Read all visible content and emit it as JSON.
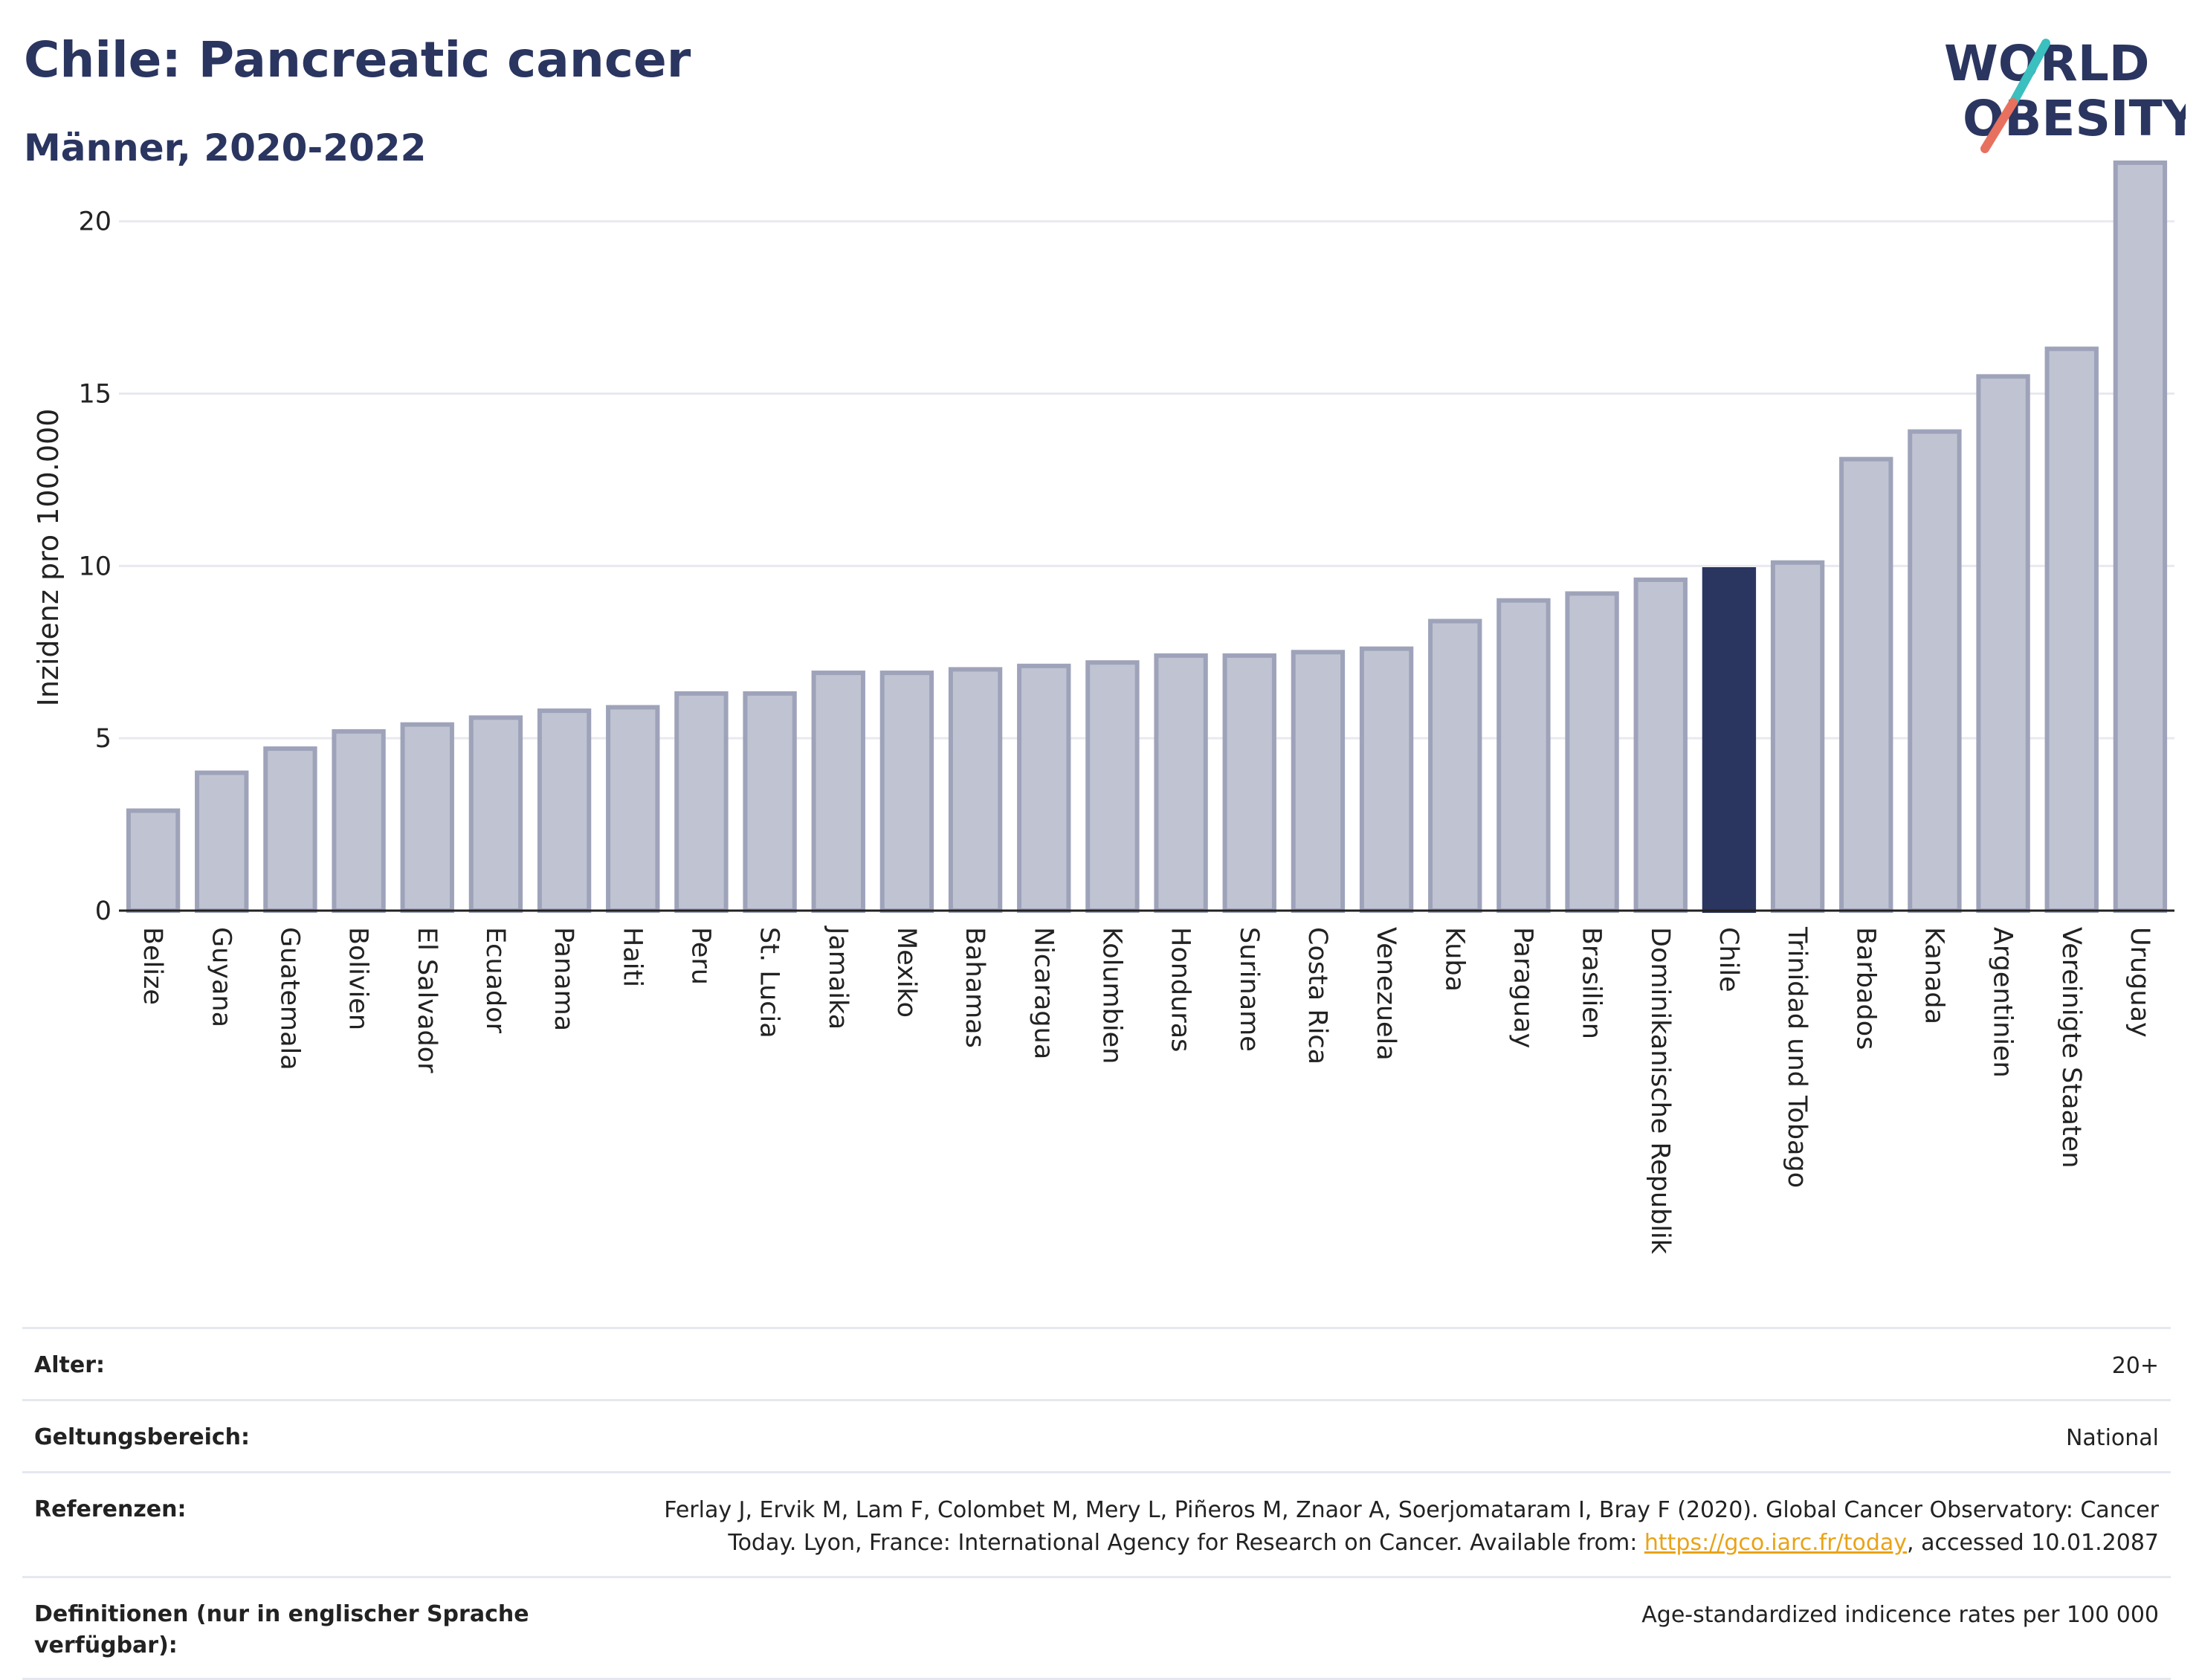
{
  "header": {
    "title": "Chile: Pancreatic cancer",
    "subtitle": "Männer, 2020-2022"
  },
  "logo": {
    "line1": "WORLD",
    "line2": "OBESITY"
  },
  "chart_data": {
    "type": "bar",
    "ylabel": "Inzidenz pro 100.000",
    "xlabel": "",
    "ylim": [
      0,
      22
    ],
    "yticks": [
      0,
      5,
      10,
      15,
      20
    ],
    "grid": true,
    "highlight": "Chile",
    "categories": [
      "Belize",
      "Guyana",
      "Guatemala",
      "Bolivien",
      "El Salvador",
      "Ecuador",
      "Panama",
      "Haiti",
      "Peru",
      "St. Lucia",
      "Jamaika",
      "Mexiko",
      "Bahamas",
      "Nicaragua",
      "Kolumbien",
      "Honduras",
      "Suriname",
      "Costa Rica",
      "Venezuela",
      "Kuba",
      "Paraguay",
      "Brasilien",
      "Dominikanische Republik",
      "Chile",
      "Trinidad und Tobago",
      "Barbados",
      "Kanada",
      "Argentinien",
      "Vereinigte Staaten",
      "Uruguay"
    ],
    "values": [
      2.9,
      4.0,
      4.7,
      5.2,
      5.4,
      5.6,
      5.8,
      5.9,
      6.3,
      6.3,
      6.9,
      6.9,
      7.0,
      7.1,
      7.2,
      7.4,
      7.4,
      7.5,
      7.6,
      8.4,
      9.0,
      9.2,
      9.6,
      9.9,
      10.1,
      13.1,
      13.9,
      15.5,
      16.3,
      21.7
    ],
    "colors": {
      "bar": "#c0c4d2",
      "bar_border": "#9ea3ba",
      "highlight": "#2a3560"
    }
  },
  "meta": {
    "rows": [
      {
        "label": "Alter:",
        "value": "20+"
      },
      {
        "label": "Geltungsbereich:",
        "value": "National"
      },
      {
        "label": "Referenzen:",
        "value_pre": "Ferlay J, Ervik M, Lam F, Colombet M, Mery L, Piñeros M, Znaor A, Soerjomataram I, Bray F (2020). Global Cancer Observatory: Cancer Today. Lyon, France: International Agency for Research on Cancer. Available from: ",
        "link": "https://gco.iarc.fr/today",
        "value_post": ", accessed 10.01.2087"
      },
      {
        "label": "Definitionen (nur in englischer Sprache verfügbar):",
        "value": "Age-standardized indicence rates per 100 000"
      }
    ]
  }
}
